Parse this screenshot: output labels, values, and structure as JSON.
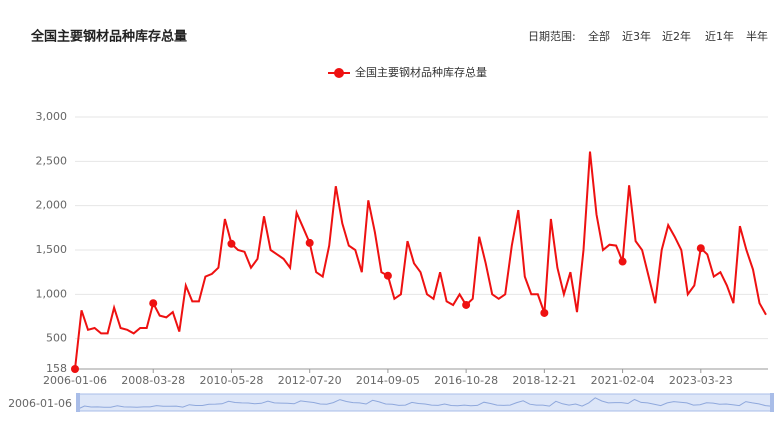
{
  "controls": {
    "label": "日期范围:",
    "options": [
      "全部",
      "近3年",
      "近2年",
      "近1年",
      "半年"
    ],
    "active": 0
  },
  "chart_data": {
    "type": "line",
    "title": "全国主要钢材品种库存总量",
    "categories": [
      "2006-01-06",
      null,
      null,
      null,
      null,
      null,
      null,
      null,
      null,
      null,
      null,
      null,
      "2008-03-28",
      null,
      null,
      null,
      null,
      null,
      null,
      null,
      null,
      null,
      null,
      null,
      "2010-05-28",
      null,
      null,
      null,
      null,
      null,
      null,
      null,
      null,
      null,
      null,
      null,
      "2012-07-20",
      null,
      null,
      null,
      null,
      null,
      null,
      null,
      null,
      null,
      null,
      null,
      "2014-09-05",
      null,
      null,
      null,
      null,
      null,
      null,
      null,
      null,
      null,
      null,
      null,
      "2016-10-28",
      null,
      null,
      null,
      null,
      null,
      null,
      null,
      null,
      null,
      null,
      null,
      "2018-12-21",
      null,
      null,
      null,
      null,
      null,
      null,
      null,
      null,
      null,
      null,
      null,
      "2021-02-04",
      null,
      null,
      null,
      null,
      null,
      null,
      null,
      null,
      null,
      null,
      null,
      "2023-03-23",
      null,
      null,
      null,
      null,
      null,
      null,
      null,
      null,
      null,
      null
    ],
    "series": [
      {
        "name": "全国主要钢材品种库存总量",
        "color": "#ee1111",
        "values": [
          158,
          820,
          600,
          620,
          560,
          560,
          850,
          620,
          600,
          560,
          620,
          620,
          900,
          760,
          740,
          800,
          580,
          1100,
          920,
          920,
          1200,
          1230,
          1300,
          1850,
          1570,
          1500,
          1480,
          1300,
          1400,
          1880,
          1500,
          1450,
          1400,
          1300,
          1920,
          1750,
          1580,
          1250,
          1200,
          1550,
          2220,
          1800,
          1550,
          1500,
          1250,
          2060,
          1700,
          1250,
          1210,
          950,
          1000,
          1600,
          1350,
          1250,
          1000,
          950,
          1250,
          920,
          880,
          1000,
          880,
          950,
          1650,
          1350,
          1000,
          950,
          1000,
          1550,
          1950,
          1200,
          1000,
          1000,
          790,
          1850,
          1300,
          1000,
          1250,
          800,
          1500,
          2610,
          1900,
          1500,
          1560,
          1550,
          1370,
          2230,
          1600,
          1500,
          1200,
          900,
          1500,
          1780,
          1650,
          1500,
          1000,
          1100,
          1520,
          1450,
          1200,
          1250,
          1100,
          900,
          1770,
          1500,
          1280,
          900,
          770
        ]
      }
    ],
    "ylim": [
      158,
      3000
    ],
    "yticks": [
      158,
      500,
      {
        "value": 1000,
        "label": "1,000"
      },
      {
        "value": 1500,
        "label": "1,500"
      },
      {
        "value": 2000,
        "label": "2,000"
      },
      {
        "value": 2500,
        "label": "2,500"
      },
      {
        "value": 3000,
        "label": "3,000"
      }
    ],
    "grid": true
  }
}
